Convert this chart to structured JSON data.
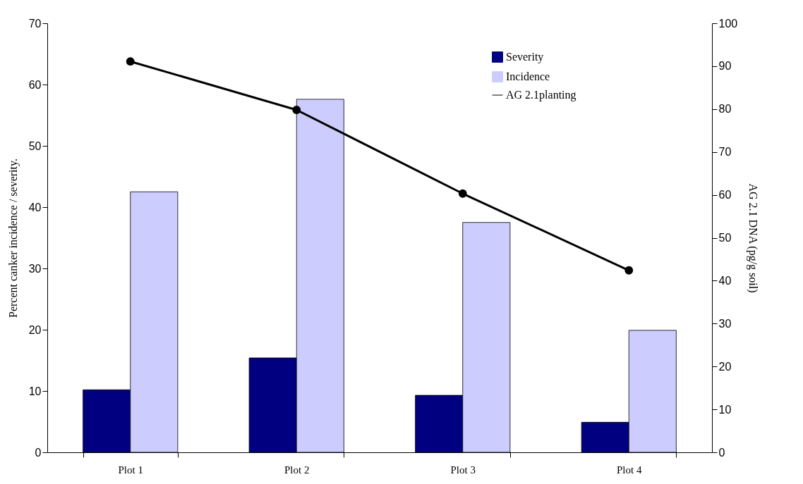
{
  "chart_data": {
    "type": "bar",
    "categories": [
      "Plot 1",
      "Plot 2",
      "Plot 3",
      "Plot 4"
    ],
    "ylabel": "Percent canker incidence / severity.",
    "y2label": "AG 2.1 DNA (pg/g soil)",
    "ylim": [
      0,
      70
    ],
    "yticks": [
      0,
      10,
      20,
      30,
      40,
      50,
      60,
      70
    ],
    "y2lim": [
      0,
      100
    ],
    "y2ticks": [
      0,
      10,
      20,
      30,
      40,
      50,
      60,
      70,
      80,
      90,
      100
    ],
    "series": [
      {
        "name": "Severity",
        "color": "#000080",
        "values": [
          10.2,
          15.4,
          9.3,
          4.9
        ]
      },
      {
        "name": "Incidence",
        "color": "#ccccff",
        "values": [
          42.5,
          57.6,
          37.5,
          19.9
        ]
      },
      {
        "name": "AG 2.1planting",
        "type": "line",
        "axis": "y2",
        "color": "#000000",
        "marker": "circle",
        "line_style": "solid",
        "values": [
          91.1,
          79.8,
          60.3,
          42.4
        ]
      }
    ],
    "grid": false,
    "legend": "top"
  }
}
